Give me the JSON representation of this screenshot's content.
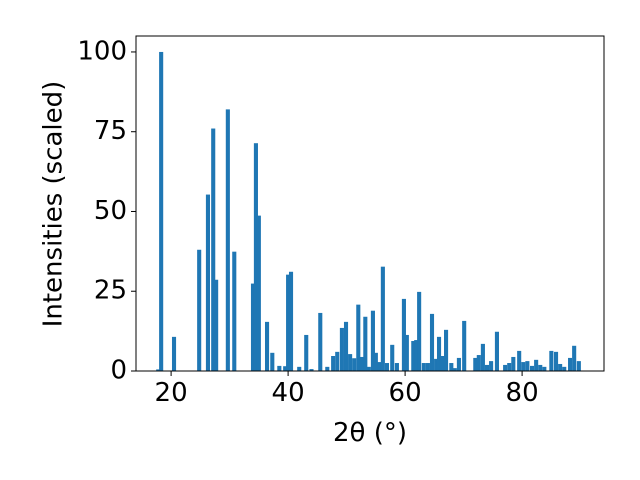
{
  "chart_data": {
    "type": "bar",
    "xlabel": "2θ (°)",
    "ylabel": "Intensities (scaled)",
    "x": [
      17.8,
      18.3,
      20.5,
      24.8,
      26.3,
      27.2,
      27.7,
      29.7,
      30.8,
      34.0,
      34.5,
      35.0,
      36.4,
      37.3,
      38.5,
      39.5,
      40.0,
      40.5,
      41.9,
      43.1,
      44.0,
      45.5,
      46.7,
      47.7,
      48.4,
      49.2,
      49.9,
      50.6,
      51.3,
      52.0,
      52.6,
      53.2,
      53.8,
      54.5,
      55.0,
      55.6,
      56.2,
      56.9,
      57.8,
      58.6,
      59.8,
      60.3,
      61.4,
      61.9,
      62.4,
      63.2,
      63.9,
      64.6,
      65.3,
      65.8,
      66.3,
      67.0,
      67.9,
      68.5,
      69.2,
      70.1,
      72.0,
      72.6,
      73.3,
      74.0,
      74.7,
      75.7,
      77.1,
      77.8,
      78.5,
      79.5,
      80.2,
      80.9,
      81.7,
      82.4,
      83.1,
      83.8,
      85.0,
      85.8,
      86.5,
      87.2,
      88.2,
      88.9,
      89.7
    ],
    "values": [
      0.5,
      100,
      10.7,
      38,
      55.3,
      76,
      28.6,
      82,
      37.4,
      27.4,
      71.4,
      48.7,
      15.4,
      5.7,
      1.6,
      1.5,
      30.2,
      31.1,
      1.3,
      11.3,
      0.6,
      18.2,
      1.3,
      4.7,
      6,
      13.5,
      15.4,
      5.3,
      4,
      20.8,
      4.4,
      17,
      1.3,
      18.9,
      5.7,
      2.8,
      32.7,
      2.5,
      8.2,
      2.5,
      22.6,
      11.3,
      9.4,
      9.7,
      24.8,
      2.5,
      2.5,
      17.9,
      3.8,
      10.7,
      4.7,
      12.9,
      2.5,
      0.9,
      4.1,
      15.7,
      4.1,
      5,
      8.5,
      1.9,
      3.1,
      12.3,
      1.9,
      2.5,
      4.4,
      6.3,
      2.8,
      3.1,
      1.6,
      3.5,
      1.9,
      1.3,
      6.3,
      6,
      2.2,
      1.3,
      4.1,
      7.9,
      3.1
    ],
    "color": "#1f77b4",
    "xlim": [
      14,
      94
    ],
    "xticks": [
      20,
      40,
      60,
      80
    ],
    "ylim": [
      0,
      105
    ],
    "yticks": [
      0,
      25,
      50,
      75,
      100
    ],
    "grid": false
  }
}
